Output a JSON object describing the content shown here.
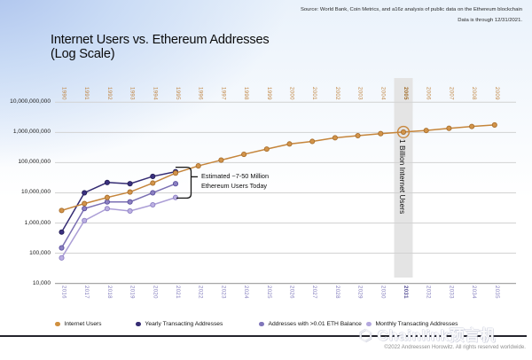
{
  "header": {
    "source_line1": "Source: World Bank, Coin Metrics, and a16z analysis of public data on the Ethereum blockchain",
    "source_line2": "Data is through 12/31/2021.",
    "title_line1": "Internet Users vs. Ethereum Addresses",
    "title_line2": "(Log Scale)"
  },
  "chart_data": {
    "type": "line",
    "scale": "log-y",
    "title": "Internet Users vs. Ethereum Addresses (Log Scale)",
    "ylim": [
      10000,
      10000000000
    ],
    "grid": "horizontal",
    "y_tick_labels": [
      "10,000,000,000",
      "1,000,000,000",
      "100,000,000",
      "10,000,000",
      "1,000,000",
      "100,000",
      "10,000"
    ],
    "top_axis_years": [
      "1990",
      "1991",
      "1992",
      "1993",
      "1994",
      "1995",
      "1996",
      "1997",
      "1998",
      "1999",
      "2000",
      "2001",
      "2002",
      "2003",
      "2004",
      "2005",
      "2006",
      "2007",
      "2008",
      "2009"
    ],
    "bottom_axis_years": [
      "2016",
      "2017",
      "2018",
      "2019",
      "2020",
      "2021",
      "2022",
      "2023",
      "2024",
      "2025",
      "2026",
      "2027",
      "2028",
      "2029",
      "2030",
      "2031",
      "2032",
      "2033",
      "2034",
      "2035"
    ],
    "highlight_top_year": "2005",
    "highlight_bottom_year": "2031",
    "series": [
      {
        "name": "Monthly Transacting Addresses",
        "axis": "bottom",
        "line_color": "#ab9ed6",
        "dot_fill": "#bcb0e2",
        "dot_stroke": "#8d80c4",
        "x_index": [
          0,
          1,
          2,
          3,
          4,
          5
        ],
        "values": [
          70000,
          1200000,
          3000000,
          2500000,
          4000000,
          7000000
        ]
      },
      {
        "name": "Addresses with >0.01 ETH Balance",
        "axis": "bottom",
        "line_color": "#7b70b3",
        "dot_fill": "#8b80c1",
        "dot_stroke": "#5a4f9e",
        "x_index": [
          0,
          1,
          2,
          3,
          4,
          5
        ],
        "values": [
          150000,
          3000000,
          5000000,
          5000000,
          10000000,
          20000000
        ]
      },
      {
        "name": "Yearly Transacting Addresses",
        "axis": "bottom",
        "line_color": "#352c73",
        "dot_fill": "#3b3180",
        "dot_stroke": "#241e55",
        "x_index": [
          0,
          1,
          2,
          3,
          4,
          5
        ],
        "values": [
          500000,
          10000000,
          22000000,
          20000000,
          35000000,
          50000000
        ]
      },
      {
        "name": "Internet Users",
        "axis": "top",
        "line_color": "#c5853b",
        "dot_fill": "#d2944a",
        "dot_stroke": "#a96f2d",
        "x_index": [
          0,
          1,
          2,
          3,
          4,
          5,
          6,
          7,
          8,
          9,
          10,
          11,
          12,
          13,
          14,
          15,
          16,
          17,
          18,
          19
        ],
        "values": [
          2600000,
          4400000,
          7000000,
          10600000,
          21000000,
          45000000,
          78000000,
          121000000,
          188000000,
          281000000,
          415000000,
          504000000,
          665000000,
          781000000,
          913000000,
          1030000000,
          1160000000,
          1370000000,
          1575000000,
          1770000000
        ]
      }
    ],
    "annotations": {
      "bracket_label_line1": "Estimated ~7-50 Million",
      "bracket_label_line2": "Ethereum Users Today",
      "band_label": "1 Billion Internet Users",
      "band_year_index": 15,
      "circled_point": {
        "series": "Internet Users",
        "year": "2005",
        "value": 1030000000
      }
    },
    "legend_position": "bottom"
  },
  "legend": {
    "items": [
      {
        "label": "Internet Users",
        "color": "#d0903f"
      },
      {
        "label": "Yearly Transacting Addresses",
        "color": "#352c73"
      },
      {
        "label": "Addresses with >0.01 ETH Balance",
        "color": "#8076ba"
      },
      {
        "label": "Monthly Transacting Addresses",
        "color": "#b4a8de"
      }
    ]
  },
  "footer": {
    "watermark_icon": "⬡",
    "watermark_text": "Chainlink预言机",
    "copyright": "©2022 Andreessen Horowitz. All rights reserved worldwide."
  },
  "colors": {
    "band": "#e4e4e4",
    "gridline": "#d2d2d2",
    "axis_line": "#a6a6a6",
    "top_axis_label": "#c08440",
    "bottom_axis_label": "#827cbd"
  }
}
